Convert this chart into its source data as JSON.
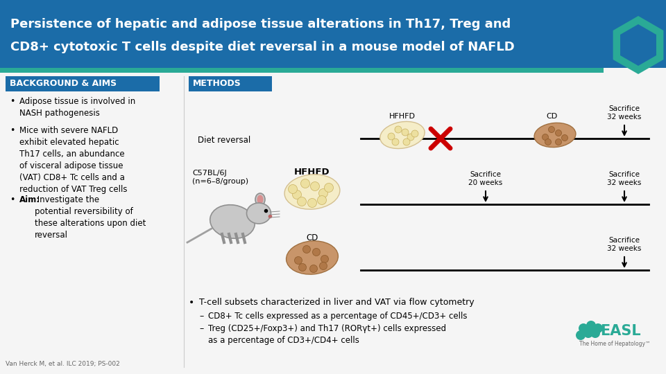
{
  "title_line1": "Persistence of hepatic and adipose tissue alterations in Th17, Treg and",
  "title_line2": "CD8+ cytotoxic T cells despite diet reversal in a mouse model of NAFLD",
  "title_bg": "#1b6ca8",
  "title_accent_bg": "#2aaa96",
  "title_text_color": "#ffffff",
  "section_bg": "#1b6ca8",
  "section_text_color": "#ffffff",
  "bg_color": "#f5f5f5",
  "aims_title": "BACKGROUND & AIMS",
  "methods_title": "METHODS",
  "citation": "Van Herck M, et al. ILC 2019; PS-002",
  "label_diet_reversal": "Diet reversal",
  "label_hfhfd_top": "HFHFD",
  "label_cd_top": "CD",
  "label_sacrifice_32w_top": "Sacrifice\n32 weeks",
  "label_sacrifice_20w": "Sacrifice\n20 weeks",
  "label_sacrifice_32w_mid": "Sacrifice\n32 weeks",
  "label_sacrifice_32w_bot": "Sacrifice\n32 weeks",
  "label_c57": "C57BL/6J\n(n=6–8/group)",
  "label_hfhfd_mid": "HFHFD",
  "label_cd_bot": "CD",
  "methods_bullet1": "T-cell subsets characterized in liver and VAT via flow cytometry",
  "methods_sub1": "CD8+ Tc cells expressed as a percentage of CD45+/CD3+ cells",
  "methods_sub2_1": "Treg (CD25+/Foxp3+) and Th17 (RORγt+) cells expressed",
  "methods_sub2_2": "as a percentage of CD3+/CD4+ cells"
}
